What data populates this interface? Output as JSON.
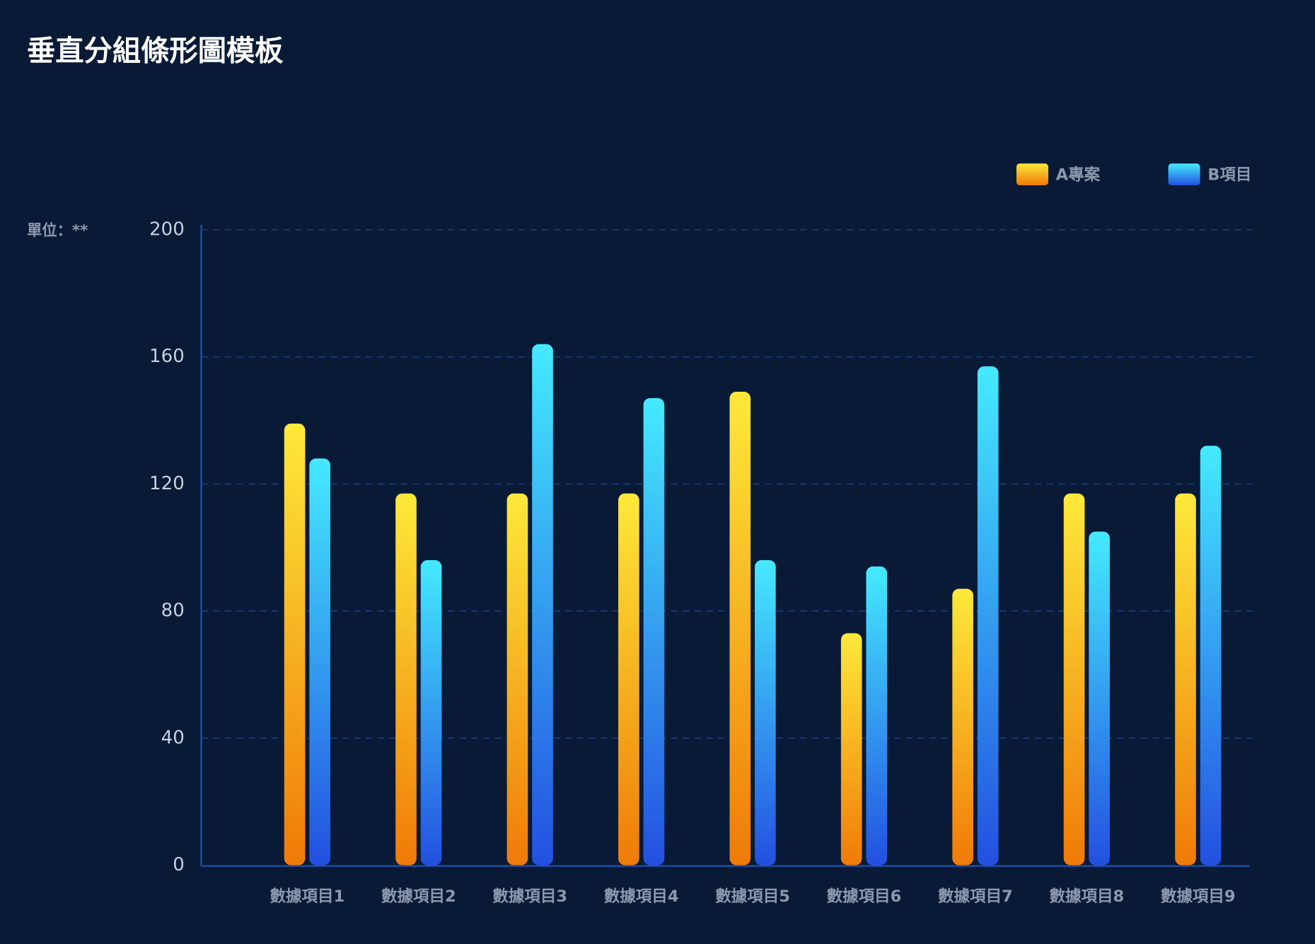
{
  "chart_data": {
    "type": "bar",
    "title": "垂直分組條形圖模板",
    "unit_label": "單位：**",
    "categories": [
      "數據項目1",
      "數據項目2",
      "數據項目3",
      "數據項目4",
      "數據項目5",
      "數據項目6",
      "數據項目7",
      "數據項目8",
      "數據項目9"
    ],
    "series": [
      {
        "name": "A專案",
        "color": "#f8a614",
        "values": [
          139,
          117,
          117,
          117,
          149,
          73,
          87,
          117,
          117
        ]
      },
      {
        "name": "B項目",
        "color": "#3aa2f2",
        "values": [
          128,
          96,
          164,
          147,
          96,
          94,
          157,
          105,
          132
        ]
      }
    ],
    "ylim": [
      0,
      200
    ],
    "yticks": [
      0,
      40,
      80,
      120,
      160,
      200
    ],
    "grid": true,
    "legend": "top-right"
  }
}
